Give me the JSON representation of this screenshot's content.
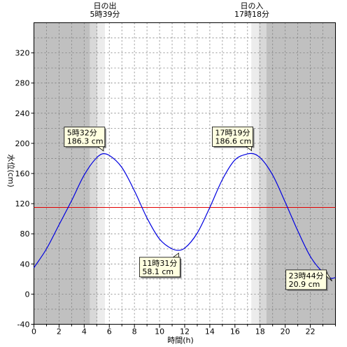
{
  "chart_data": {
    "type": "line",
    "xlabel": "時間(h)",
    "ylabel": "水位(cm)",
    "xlim": [
      0,
      24
    ],
    "ylim": [
      -40,
      360
    ],
    "x_ticks": [
      0,
      2,
      4,
      6,
      8,
      10,
      12,
      14,
      16,
      18,
      20,
      22
    ],
    "y_ticks": [
      -40,
      0,
      40,
      80,
      120,
      160,
      200,
      240,
      280,
      320
    ],
    "grid": true,
    "reference_line": {
      "y": 115,
      "color": "#e00000"
    },
    "sunrise": {
      "label": "日の出",
      "time": "5時39分",
      "hour": 5.65
    },
    "sunset": {
      "label": "日の入",
      "time": "17時18分",
      "hour": 17.3
    },
    "series": [
      {
        "color": "#0000e0",
        "x": [
          0,
          1,
          2,
          3,
          4,
          5,
          5.53,
          6,
          7,
          8,
          9,
          10,
          11,
          11.52,
          12,
          13,
          14,
          15,
          16,
          17,
          17.32,
          18,
          19,
          20,
          21,
          22,
          23,
          23.73,
          24
        ],
        "y": [
          35,
          60,
          92,
          124,
          158,
          181,
          186.3,
          184,
          168,
          137,
          101,
          73,
          60,
          58.1,
          61,
          81,
          115,
          152,
          178,
          186,
          186.6,
          181,
          158,
          122,
          84,
          50,
          29,
          20.9,
          22
        ]
      }
    ],
    "annotations": [
      {
        "time": "5時32分",
        "value": "186.3 cm",
        "x": 5.53,
        "y": 186.3
      },
      {
        "time": "11時31分",
        "value": "58.1 cm",
        "x": 11.52,
        "y": 58.1
      },
      {
        "time": "17時19分",
        "value": "186.6 cm",
        "x": 17.32,
        "y": 186.6
      },
      {
        "time": "23時44分",
        "value": "20.9 cm",
        "x": 23.73,
        "y": 20.9
      }
    ],
    "colors": {
      "night": "#c0c0c0",
      "twilight_dark": "#d8d8d8",
      "twilight_light": "#ececec",
      "day": "#ffffff",
      "callout_bg": "#ffffe0"
    }
  }
}
